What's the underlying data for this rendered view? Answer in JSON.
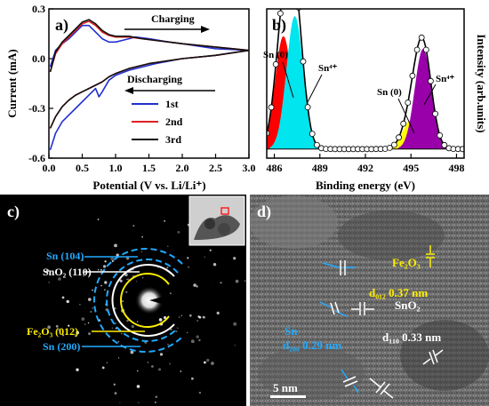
{
  "chart_data": [
    {
      "panel": "a)",
      "type": "line",
      "xlabel": "Potential (V vs. Li/Li⁺)",
      "ylabel": "Current (mA)",
      "xlim": [
        0,
        3.0
      ],
      "ylim": [
        -0.6,
        0.3
      ],
      "xticks": [
        "0.0",
        "0.5",
        "1.0",
        "1.5",
        "2.0",
        "2.5",
        "3.0"
      ],
      "yticks": [
        "0.3",
        "0.0",
        "-0.3",
        "-0.6"
      ],
      "annotations": [
        "Charging",
        "Discharging"
      ],
      "legend": "bottom-right",
      "series": [
        {
          "name": "1st",
          "color": "#2030d0",
          "x": [
            0.02,
            0.1,
            0.2,
            0.3,
            0.4,
            0.5,
            0.6,
            0.7,
            0.8,
            0.9,
            1.0,
            1.1,
            1.2,
            1.3,
            1.5,
            1.8,
            2.0,
            2.5,
            3.0,
            2.5,
            2.0,
            1.6,
            1.2,
            1.0,
            0.9,
            0.8,
            0.75,
            0.7,
            0.6,
            0.4,
            0.2,
            0.1,
            0.02
          ],
          "y": [
            -0.05,
            0.05,
            0.09,
            0.12,
            0.16,
            0.2,
            0.2,
            0.16,
            0.12,
            0.1,
            0.1,
            0.11,
            0.12,
            0.13,
            0.12,
            0.1,
            0.09,
            0.06,
            0.05,
            0.02,
            0.0,
            -0.03,
            -0.07,
            -0.1,
            -0.13,
            -0.2,
            -0.23,
            -0.18,
            -0.22,
            -0.3,
            -0.38,
            -0.45,
            -0.55
          ]
        },
        {
          "name": "2nd",
          "color": "#e02020",
          "x": [
            0.02,
            0.1,
            0.2,
            0.3,
            0.4,
            0.5,
            0.6,
            0.7,
            0.8,
            0.9,
            1.0,
            1.2,
            1.4,
            1.6,
            1.8,
            2.0,
            2.5,
            3.0,
            2.5,
            2.0,
            1.5,
            1.2,
            1.0,
            0.9,
            0.8,
            0.7,
            0.6,
            0.5,
            0.4,
            0.3,
            0.2,
            0.1,
            0.02
          ],
          "y": [
            -0.08,
            0.03,
            0.09,
            0.13,
            0.17,
            0.21,
            0.225,
            0.2,
            0.16,
            0.14,
            0.13,
            0.13,
            0.12,
            0.11,
            0.1,
            0.09,
            0.07,
            0.05,
            0.02,
            0.0,
            -0.03,
            -0.06,
            -0.09,
            -0.11,
            -0.14,
            -0.16,
            -0.18,
            -0.2,
            -0.22,
            -0.25,
            -0.29,
            -0.35,
            -0.42
          ]
        },
        {
          "name": "3rd",
          "color": "#111111",
          "x": [
            0.02,
            0.1,
            0.2,
            0.3,
            0.4,
            0.5,
            0.6,
            0.7,
            0.8,
            0.9,
            1.0,
            1.2,
            1.4,
            1.6,
            1.8,
            2.0,
            2.5,
            3.0,
            2.5,
            2.0,
            1.5,
            1.2,
            1.0,
            0.9,
            0.8,
            0.7,
            0.6,
            0.5,
            0.4,
            0.3,
            0.2,
            0.1,
            0.02
          ],
          "y": [
            -0.08,
            0.04,
            0.1,
            0.14,
            0.18,
            0.22,
            0.235,
            0.21,
            0.17,
            0.145,
            0.135,
            0.135,
            0.12,
            0.11,
            0.1,
            0.09,
            0.07,
            0.05,
            0.02,
            0.0,
            -0.03,
            -0.06,
            -0.09,
            -0.11,
            -0.14,
            -0.16,
            -0.18,
            -0.2,
            -0.22,
            -0.25,
            -0.29,
            -0.35,
            -0.42
          ]
        }
      ]
    },
    {
      "panel": "b)",
      "type": "line",
      "xlabel": "Binding energy (eV)",
      "ylabel": "Intensity (arb.units)",
      "xlim": [
        485.5,
        498.5
      ],
      "xticks": [
        "486",
        "489",
        "492",
        "495",
        "498"
      ],
      "peak_labels": [
        "Sn (0)",
        "Sn⁴⁺",
        "Sn (0)",
        "Sn⁴⁺"
      ],
      "components": [
        {
          "name": "Sn (0)",
          "center": 486.6,
          "height": 0.62,
          "width": 0.55,
          "color": "#ff0000"
        },
        {
          "name": "Sn⁴⁺",
          "center": 487.35,
          "height": 0.73,
          "width": 0.55,
          "color": "#00e5ee"
        },
        {
          "name": "Sn (0)",
          "center": 495.0,
          "height": 0.16,
          "width": 0.55,
          "color": "#ffff00"
        },
        {
          "name": "Sn⁴⁺",
          "center": 495.8,
          "height": 0.55,
          "width": 0.55,
          "color": "#9900aa"
        }
      ]
    }
  ],
  "panel_c": {
    "label": "c)",
    "rings": [
      {
        "label": "Sn (104)",
        "color": "#22aaff"
      },
      {
        "label": "SnO₂ (110)",
        "color": "#ffffff"
      },
      {
        "label": "Fe₂O₃ (012)",
        "color": "#ffee00"
      },
      {
        "label": "Sn (200)",
        "color": "#22aaff"
      }
    ]
  },
  "panel_d": {
    "label": "d)",
    "annotations": {
      "fe2o3": "Fe₂O₃",
      "fe2o3_d": "d₀₁₂ 0.37 nm",
      "sno2": "SnO₂",
      "sno2_d": "d₁₁₀ 0.33 nm",
      "sn": "Sn",
      "sn_d": "d₂₀₀ 0.29 nm"
    },
    "scale_bar": "5 nm"
  },
  "colors": {
    "blue": "#2030d0",
    "red": "#e02020",
    "black": "#111111",
    "cyan": "#00e5ee",
    "yellow": "#ffff00",
    "purple": "#9900aa",
    "accent_blue": "#22aaff",
    "accent_yellow": "#ffee00"
  }
}
